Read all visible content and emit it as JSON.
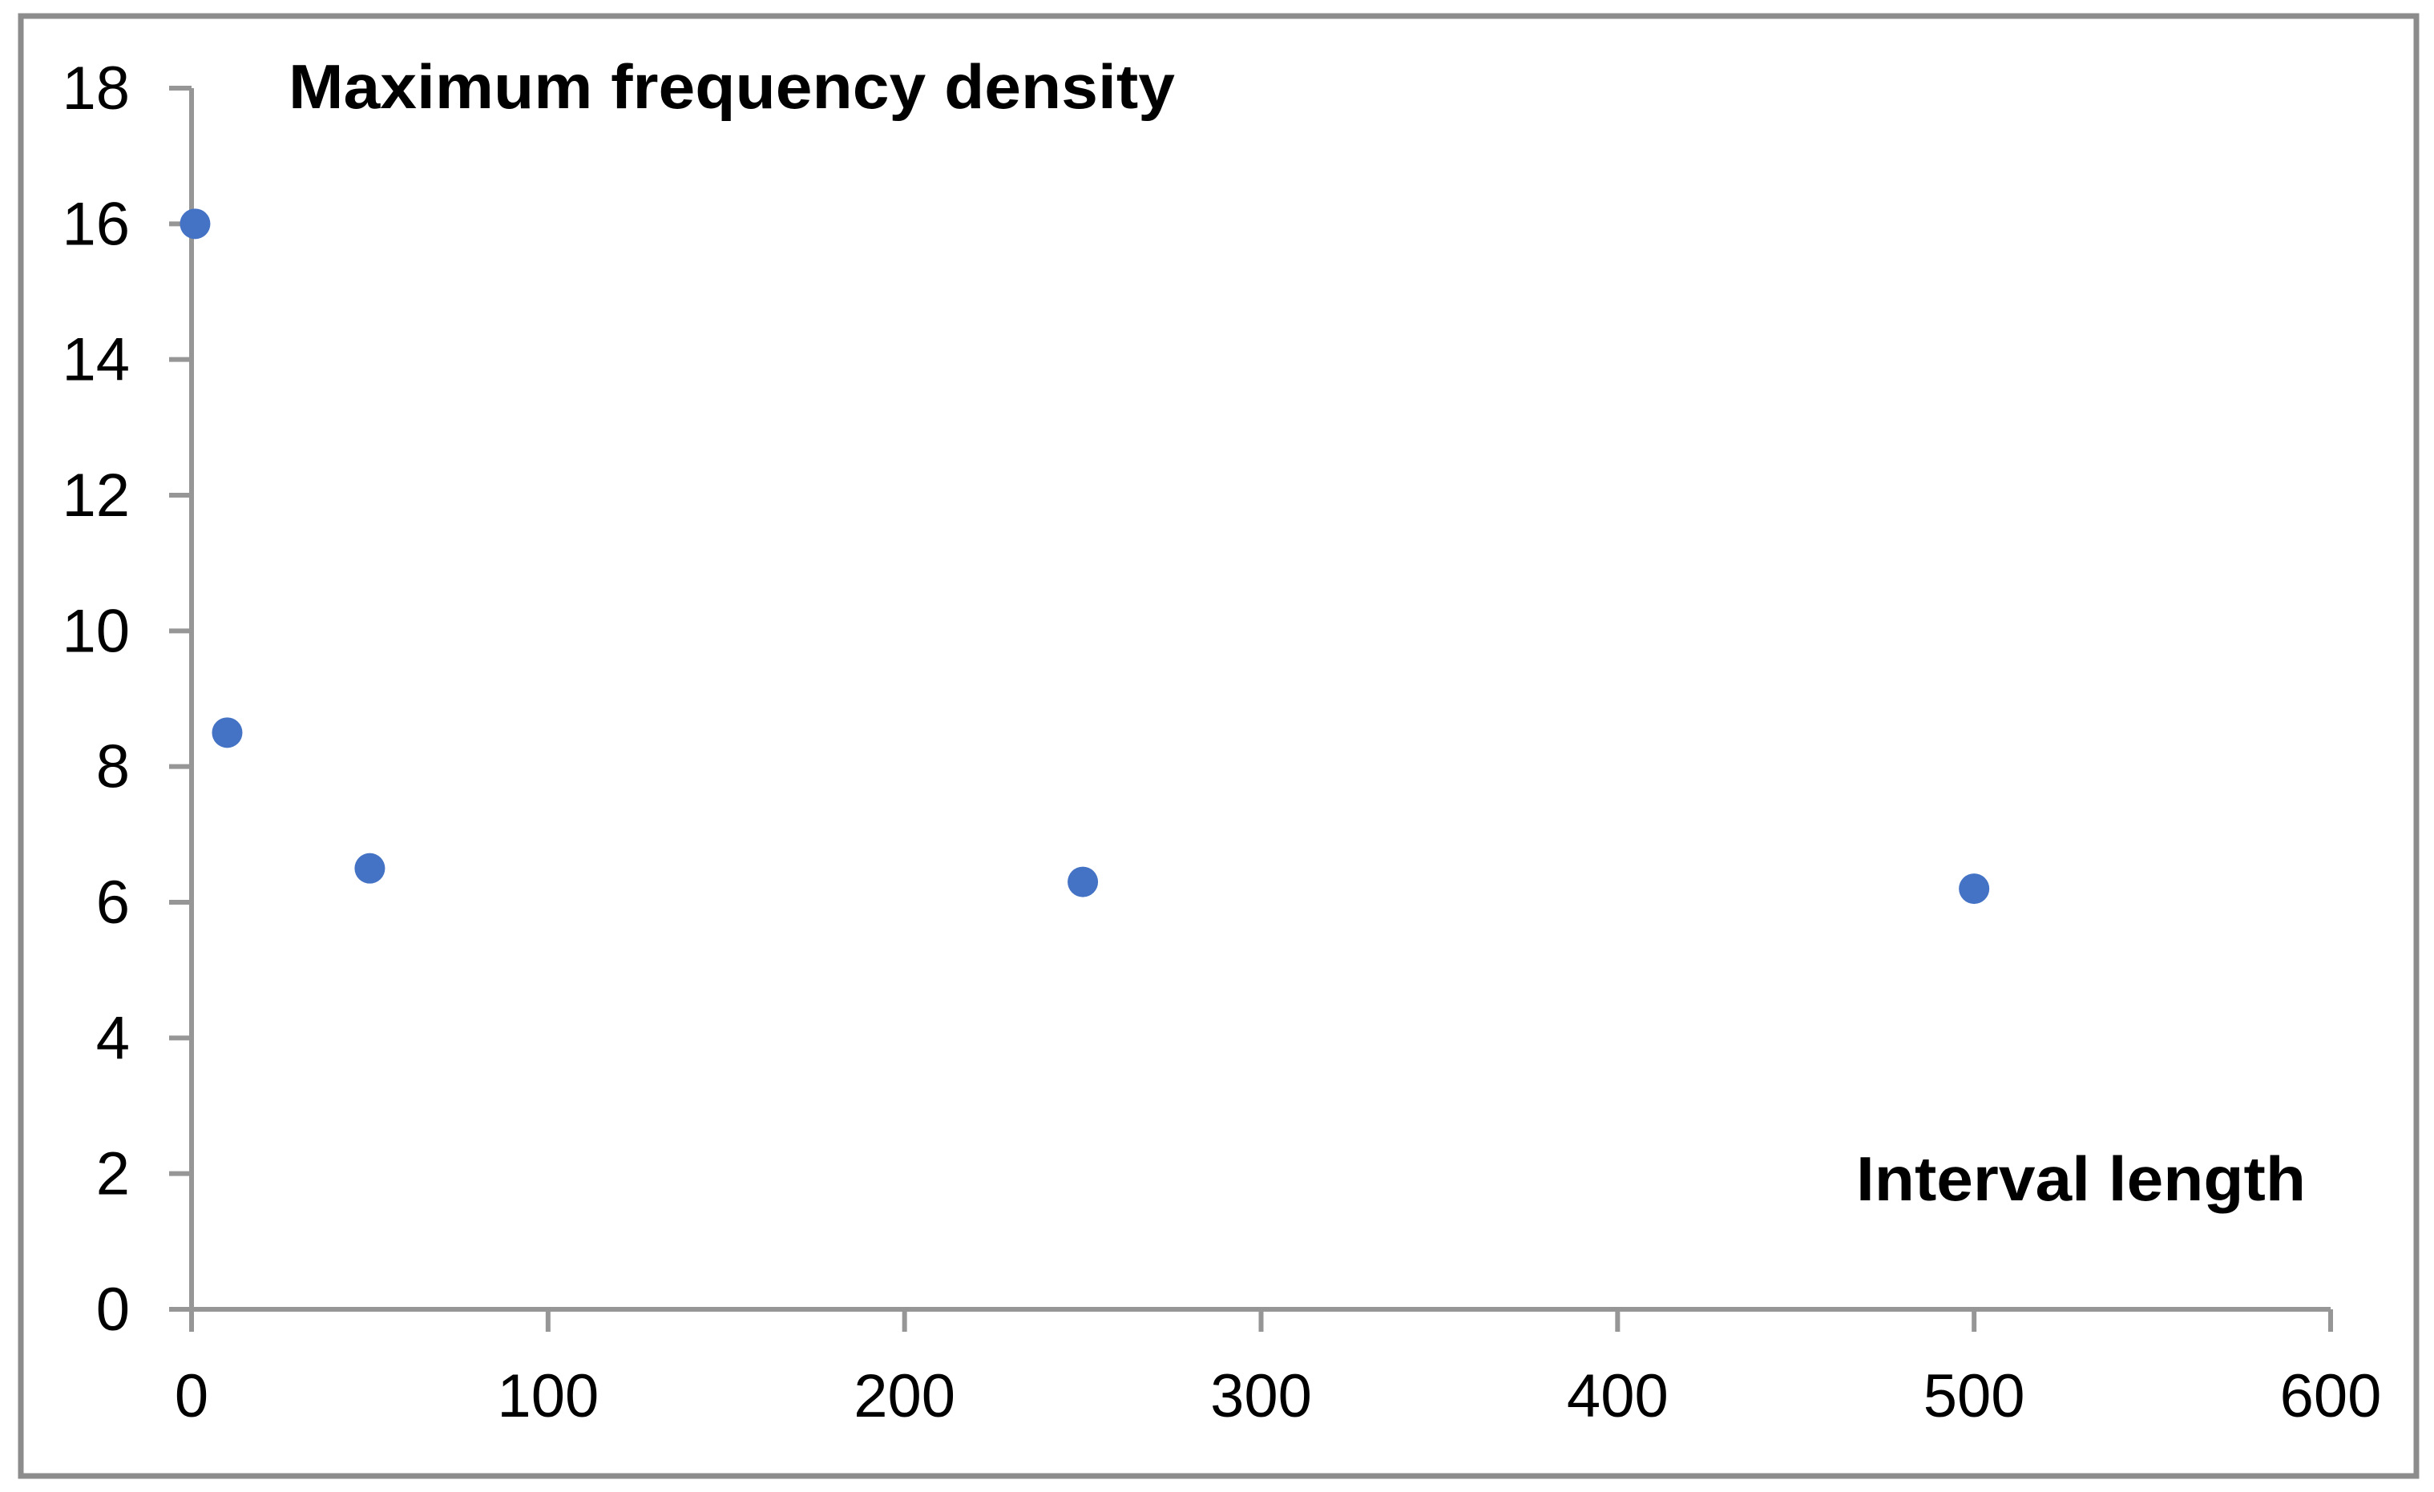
{
  "figure": {
    "kind": "excel-style scatter chart",
    "background": "#ffffff"
  },
  "chart_data": {
    "type": "scatter",
    "title": "Maximum frequency density",
    "xlabel": "Interval length",
    "ylabel": "",
    "points": [
      {
        "x": 1,
        "y": 16
      },
      {
        "x": 10,
        "y": 8.5
      },
      {
        "x": 50,
        "y": 6.5
      },
      {
        "x": 250,
        "y": 6.3
      },
      {
        "x": 500,
        "y": 6.2
      }
    ],
    "xlim": [
      0,
      600
    ],
    "ylim": [
      0,
      18
    ],
    "xticks": [
      0,
      100,
      200,
      300,
      400,
      500,
      600
    ],
    "yticks": [
      0,
      2,
      4,
      6,
      8,
      10,
      12,
      14,
      16,
      18
    ],
    "grid": false,
    "legend": false,
    "marker_color": "#4472C4",
    "axis_color": "#969696",
    "border_color": "#8C8C8C",
    "text_color": "#000000"
  }
}
